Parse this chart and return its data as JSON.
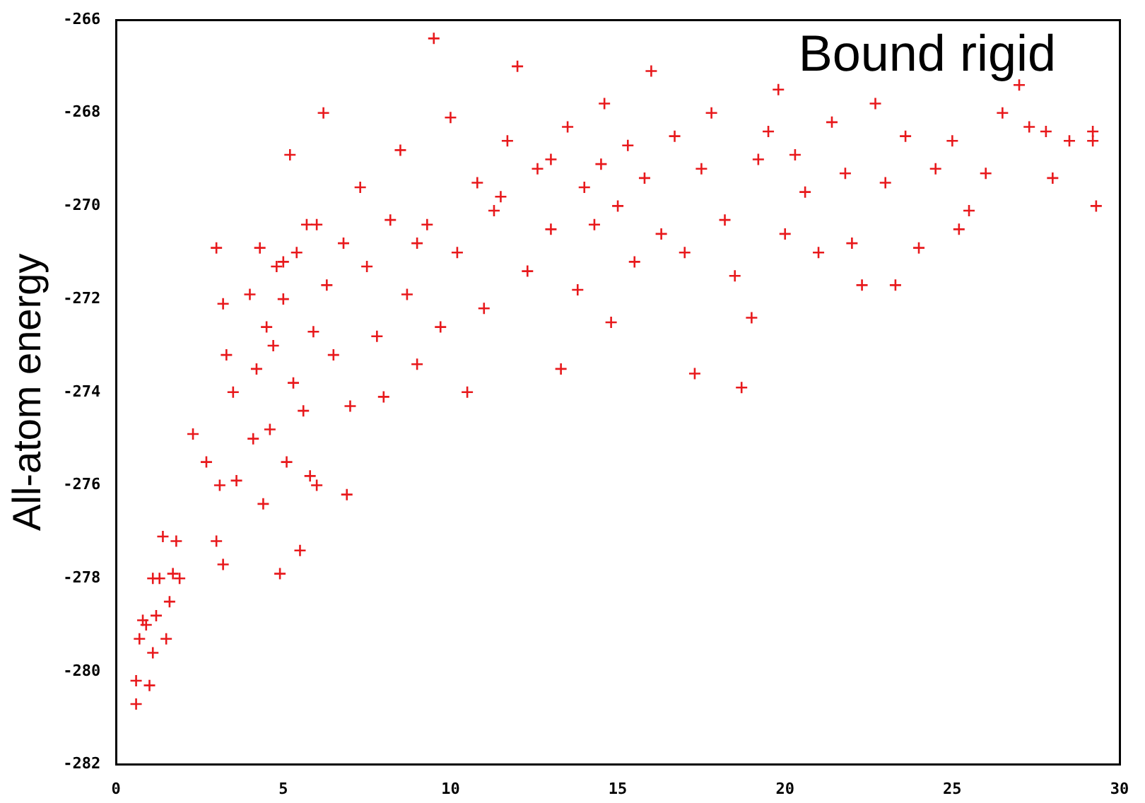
{
  "chart_data": {
    "type": "scatter",
    "title": "Bound rigid",
    "ylabel": "All-atom energy",
    "xlim": [
      0,
      30
    ],
    "xticks": [
      0,
      5,
      10,
      15,
      20,
      25,
      30
    ],
    "ylim": [
      -282,
      -266
    ],
    "yticks": [
      -282,
      -280,
      -278,
      -276,
      -274,
      -272,
      -270,
      -268,
      -266
    ],
    "grid": false,
    "legend": false,
    "marker": "cross",
    "series": [
      {
        "color": "#e8191c",
        "x": [
          0.6,
          0.6,
          0.7,
          0.9,
          1.0,
          1.1,
          1.2,
          1.3,
          1.4,
          1.5,
          1.6,
          1.7,
          1.8,
          1.9,
          0.8,
          1.1,
          2.3,
          2.7,
          3.0,
          3.0,
          3.2,
          3.1,
          3.2,
          3.3,
          3.5,
          3.6,
          4.0,
          4.2,
          4.1,
          4.4,
          4.3,
          4.5,
          4.6,
          4.8,
          4.9,
          5.0,
          5.1,
          5.2,
          5.3,
          5.4,
          5.5,
          5.6,
          5.7,
          5.8,
          5.9,
          6.0,
          6.2,
          6.3,
          6.5,
          6.8,
          6.9,
          7.0,
          7.3,
          7.5,
          7.8,
          8.0,
          8.2,
          8.5,
          8.7,
          9.0,
          9.3,
          9.5,
          9.7,
          10.0,
          10.2,
          10.5,
          10.8,
          11.0,
          11.3,
          11.7,
          12.0,
          12.3,
          12.6,
          13.0,
          13.3,
          13.5,
          13.8,
          14.0,
          14.3,
          14.6,
          14.8,
          15.0,
          15.3,
          15.5,
          15.8,
          16.0,
          16.3,
          16.7,
          17.0,
          17.3,
          17.5,
          17.8,
          18.2,
          18.5,
          18.7,
          19.0,
          19.2,
          19.5,
          19.8,
          20.0,
          20.3,
          20.6,
          21.0,
          21.4,
          21.8,
          22.0,
          22.3,
          22.7,
          23.0,
          23.3,
          23.6,
          24.0,
          24.5,
          25.0,
          25.2,
          25.5,
          26.0,
          26.5,
          27.0,
          27.3,
          27.8,
          28.0,
          28.5,
          29.2,
          29.3,
          29.2,
          13.0,
          11.5,
          9.0,
          6.0,
          5.0,
          4.7,
          14.5
        ],
        "values": [
          -280.7,
          -280.2,
          -279.3,
          -279.0,
          -280.3,
          -279.6,
          -278.8,
          -278.0,
          -277.1,
          -279.3,
          -278.5,
          -277.9,
          -277.2,
          -278.0,
          -278.9,
          -278.0,
          -274.9,
          -275.5,
          -270.9,
          -277.2,
          -277.7,
          -276.0,
          -272.1,
          -273.2,
          -274.0,
          -275.9,
          -271.9,
          -273.5,
          -275.0,
          -276.4,
          -270.9,
          -272.6,
          -274.8,
          -271.3,
          -277.9,
          -272.0,
          -275.5,
          -268.9,
          -273.8,
          -271.0,
          -277.4,
          -274.4,
          -270.4,
          -275.8,
          -272.7,
          -276.0,
          -268.0,
          -271.7,
          -273.2,
          -270.8,
          -276.2,
          -274.3,
          -269.6,
          -271.3,
          -272.8,
          -274.1,
          -270.3,
          -268.8,
          -271.9,
          -273.4,
          -270.4,
          -266.4,
          -272.6,
          -268.1,
          -271.0,
          -274.0,
          -269.5,
          -272.2,
          -270.1,
          -268.6,
          -267.0,
          -271.4,
          -269.2,
          -270.5,
          -273.5,
          -268.3,
          -271.8,
          -269.6,
          -270.4,
          -267.8,
          -272.5,
          -270.0,
          -268.7,
          -271.2,
          -269.4,
          -267.1,
          -270.6,
          -268.5,
          -271.0,
          -273.6,
          -269.2,
          -268.0,
          -270.3,
          -271.5,
          -273.9,
          -272.4,
          -269.0,
          -268.4,
          -267.5,
          -270.6,
          -268.9,
          -269.7,
          -271.0,
          -268.2,
          -269.3,
          -270.8,
          -271.7,
          -267.8,
          -269.5,
          -271.7,
          -268.5,
          -270.9,
          -269.2,
          -268.6,
          -270.5,
          -270.1,
          -269.3,
          -268.0,
          -267.4,
          -268.3,
          -268.4,
          -269.4,
          -268.6,
          -268.4,
          -270.0,
          -268.6,
          -269.0,
          -269.8,
          -270.8,
          -270.4,
          -271.2,
          -273.0,
          -269.1
        ]
      }
    ]
  }
}
